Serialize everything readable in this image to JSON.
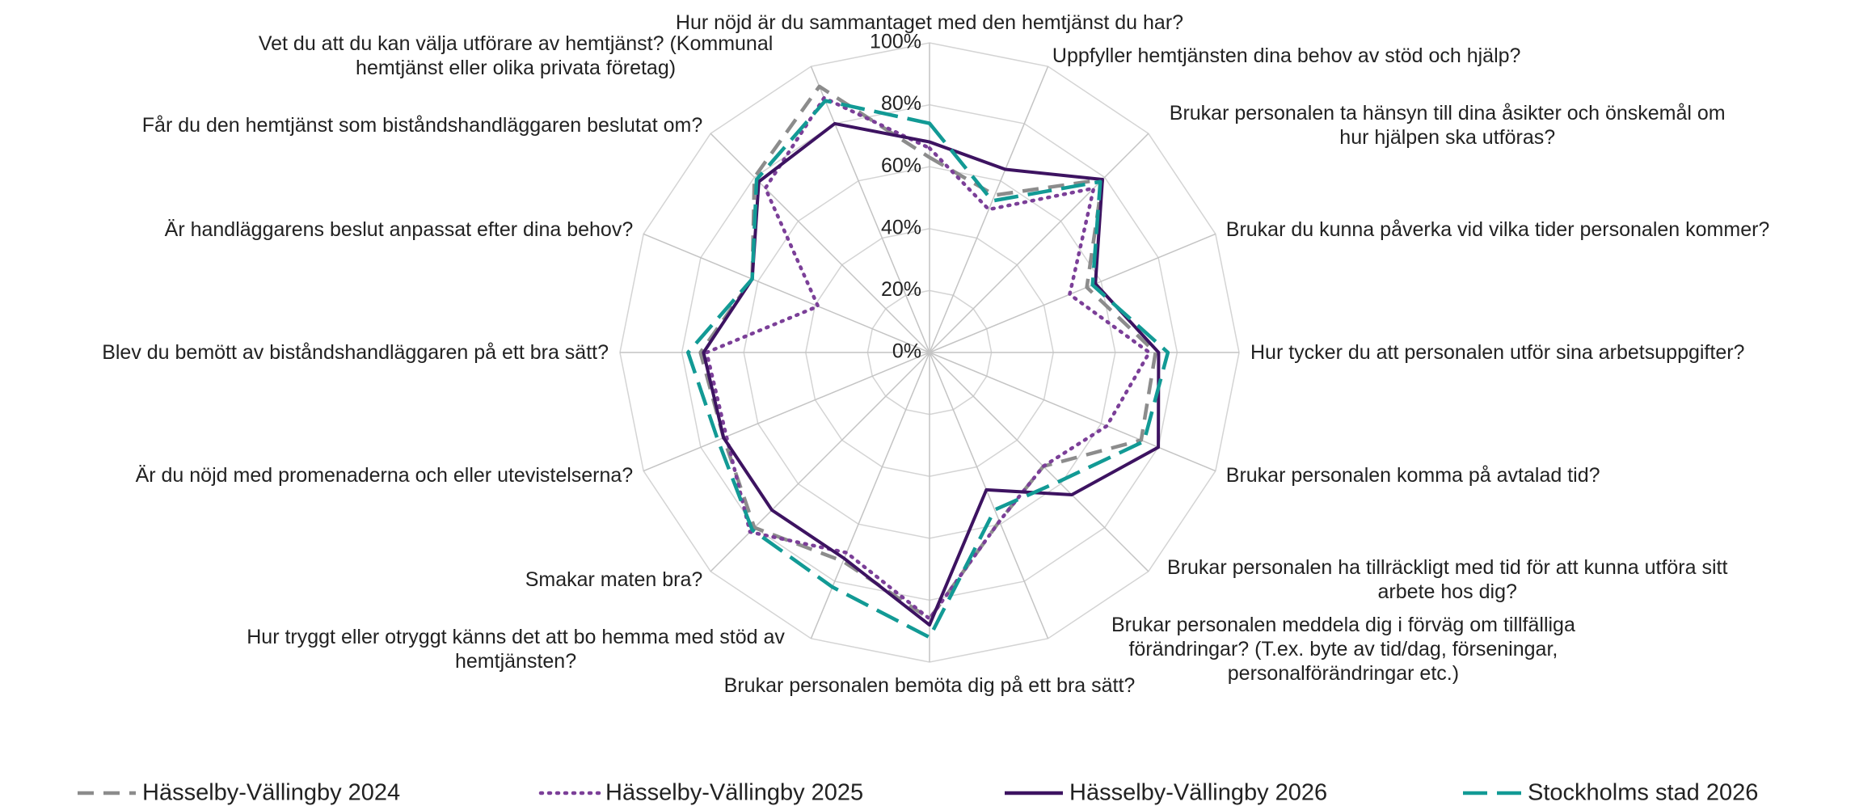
{
  "chart_data": {
    "type": "radar",
    "categories": [
      "Hur nöjd är du sammantaget med den hemtjänst du har?",
      "Uppfyller hemtjänsten dina behov av stöd och hjälp?",
      "Brukar personalen ta hänsyn till dina åsikter och önskemål om hur hjälpen ska utföras?",
      "Brukar du kunna påverka vid vilka tider personalen kommer?",
      "Hur tycker du att personalen utför sina  arbetsuppgifter?",
      "Brukar personalen komma på avtalad tid?",
      "Brukar personalen ha tillräckligt med tid för att kunna utföra sitt arbete hos dig?",
      "Brukar personalen meddela dig i förväg om tillfälliga förändringar? (T.ex. byte av tid/dag, förseningar, personalförändringar etc.)",
      "Brukar personalen bemöta dig på ett bra sätt?",
      "Hur tryggt eller otryggt känns det att bo hemma med stöd av hemtjänsten?",
      "Smakar maten bra?",
      "Är du nöjd med promenaderna och eller utevistelserna?",
      "Blev du bemött av biståndshandläggaren på ett bra sätt?",
      "Är handläggarens beslut anpassat efter dina behov?",
      "Får du den hemtjänst som biståndshandläggaren beslutat om?",
      "Vet du att du kan välja utförare av hemtjänst? (Kommunal hemtjänst eller olika privata företag)"
    ],
    "series": [
      {
        "name": "Hässelby-Vällingby 2024",
        "color": "#8c8c8c",
        "dash": "dashed",
        "values": [
          63,
          55,
          79,
          55,
          73,
          74,
          52,
          59,
          86,
          73,
          80,
          72,
          74,
          62,
          80,
          93
        ]
      },
      {
        "name": "Hässelby-Vällingby 2025",
        "color": "#7b3f98",
        "dash": "dotted",
        "values": [
          66,
          50,
          75,
          49,
          71,
          62,
          52,
          59,
          86,
          70,
          82,
          71,
          72,
          39,
          75,
          89
        ]
      },
      {
        "name": "Hässelby-Vällingby 2026",
        "color": "#3d1361",
        "dash": "solid",
        "values": [
          68,
          64,
          79,
          58,
          74,
          80,
          65,
          48,
          88,
          72,
          72,
          72,
          73,
          62,
          78,
          80
        ]
      },
      {
        "name": "Stockholms stad 2026",
        "color": "#129a95",
        "dash": "longdash",
        "values": [
          74,
          53,
          78,
          57,
          77,
          75,
          59,
          55,
          92,
          82,
          81,
          74,
          78,
          62,
          79,
          88
        ]
      }
    ],
    "ylim": [
      0,
      100
    ],
    "yticks": [
      {
        "value": 0,
        "label": "0%"
      },
      {
        "value": 20,
        "label": "20%"
      },
      {
        "value": 40,
        "label": "40%"
      },
      {
        "value": 60,
        "label": "60%"
      },
      {
        "value": 80,
        "label": "80%"
      },
      {
        "value": 100,
        "label": "100%"
      }
    ],
    "grid": true,
    "legend": "bottom"
  }
}
